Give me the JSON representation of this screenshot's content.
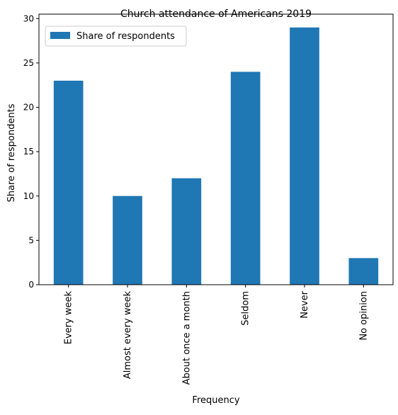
{
  "chart_data": {
    "type": "bar",
    "title": "Church attendance of Americans 2019",
    "xlabel": "Frequency",
    "ylabel": "Share of respondents",
    "categories": [
      "Every week",
      "Almost every week",
      "About once a month",
      "Seldom",
      "Never",
      "No opinion"
    ],
    "series": [
      {
        "name": "Share of respondents",
        "values": [
          23,
          10,
          12,
          24,
          29,
          3
        ],
        "color": "#1f77b4"
      }
    ],
    "ylim": [
      0,
      30.5
    ],
    "yticks": [
      0,
      5,
      10,
      15,
      20,
      25,
      30
    ],
    "grid": false,
    "legend_position": "top-left"
  }
}
